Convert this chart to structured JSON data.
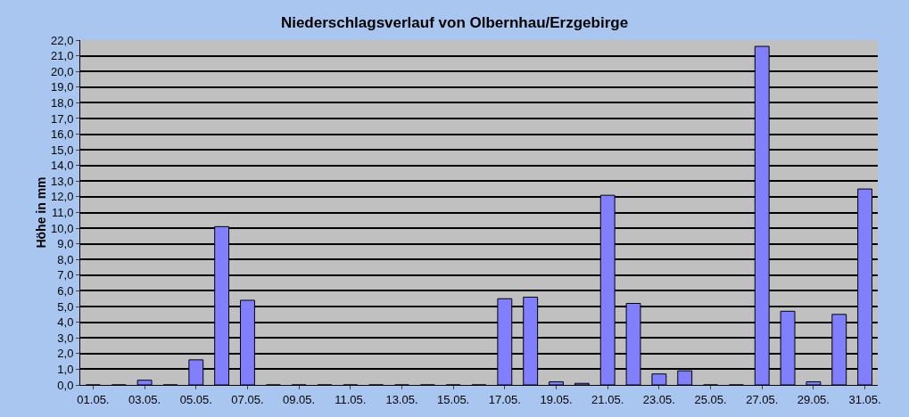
{
  "chart_data": {
    "type": "bar",
    "title": "Niederschlagsverlauf von Olbernhau/Erzgebirge",
    "ylabel": "Höhe in mm",
    "categories": [
      "01.05.",
      null,
      "03.05.",
      null,
      "05.05.",
      null,
      "07.05.",
      null,
      "09.05.",
      null,
      "11.05.",
      null,
      "13.05.",
      null,
      "15.05.",
      null,
      "17.05.",
      null,
      "19.05.",
      null,
      "21.05.",
      null,
      "23.05.",
      null,
      "25.05.",
      null,
      "27.05.",
      null,
      "29.05.",
      null,
      "31.05."
    ],
    "values": [
      0,
      0,
      0.3,
      0,
      1.6,
      10.1,
      5.4,
      0,
      0,
      0,
      0,
      0,
      0,
      0,
      0,
      0,
      5.5,
      5.6,
      0.2,
      0.1,
      12.1,
      5.2,
      0.7,
      0.9,
      0,
      0,
      21.6,
      4.7,
      0.2,
      4.5,
      12.5
    ],
    "color": "#8080ff",
    "ylim": [
      0,
      22
    ],
    "yticks": [
      {
        "value": 0,
        "label": "0,0"
      },
      {
        "value": 1,
        "label": "1,0"
      },
      {
        "value": 2,
        "label": "2,0"
      },
      {
        "value": 3,
        "label": "3,0"
      },
      {
        "value": 4,
        "label": "4,0"
      },
      {
        "value": 5,
        "label": "5,0"
      },
      {
        "value": 6,
        "label": "6,0"
      },
      {
        "value": 7,
        "label": "7,0"
      },
      {
        "value": 8,
        "label": "8,0"
      },
      {
        "value": 9,
        "label": "9,0"
      },
      {
        "value": 10,
        "label": "10,0"
      },
      {
        "value": 11,
        "label": "11,0"
      },
      {
        "value": 12,
        "label": "12,0"
      },
      {
        "value": 13,
        "label": "13,0"
      },
      {
        "value": 14,
        "label": "14,0"
      },
      {
        "value": 15,
        "label": "15,0"
      },
      {
        "value": 16,
        "label": "16,0"
      },
      {
        "value": 17,
        "label": "17,0"
      },
      {
        "value": 18,
        "label": "18,0"
      },
      {
        "value": 19,
        "label": "19,0"
      },
      {
        "value": 20,
        "label": "20,0"
      },
      {
        "value": 21,
        "label": "21,0"
      },
      {
        "value": 22,
        "label": "22,0"
      }
    ],
    "grid": "y"
  }
}
